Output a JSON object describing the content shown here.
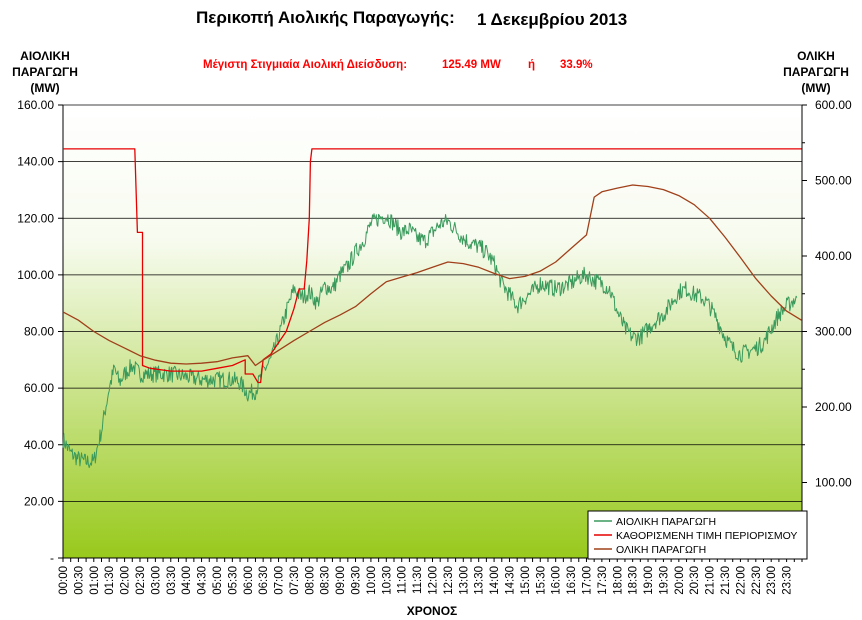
{
  "title_main": "Περικοπή Αιολικής Παραγωγής:",
  "title_date": "1 Δεκεμβρίου 2013",
  "subtitle": {
    "label": "Μέγιστη Στιγμιαία Αιολική Διείσδυση:",
    "value_mw": "125.49 MW",
    "or_word": "ή",
    "value_pct": "33.9%"
  },
  "left_axis_title": [
    "ΑΙΟΛΙΚΗ",
    "ΠΑΡΑΓΩΓΗ",
    "(MW)"
  ],
  "right_axis_title": [
    "ΟΛΙΚΗ",
    "ΠΑΡΑΓΩΓΗ",
    "(MW)"
  ],
  "x_axis_title": "ΧΡΟΝΟΣ",
  "colors": {
    "wind": "#3a9a5c",
    "limit": "#e60000",
    "total": "#a0401a",
    "gradient_top": "#ffffff",
    "gradient_bottom": "#98c91c"
  },
  "chart_data": {
    "type": "line",
    "grid": true,
    "legend_position": "bottom-right",
    "x_tick_labels": [
      "00:00",
      "00:30",
      "01:00",
      "01:30",
      "02:00",
      "02:30",
      "03:00",
      "03:30",
      "04:00",
      "04:30",
      "05:00",
      "05:30",
      "06:00",
      "06:30",
      "07:00",
      "07:30",
      "08:00",
      "08:30",
      "09:00",
      "09:30",
      "10:00",
      "10:30",
      "11:00",
      "11:30",
      "12:00",
      "12:30",
      "13:00",
      "13:30",
      "14:00",
      "14:30",
      "15:00",
      "15:30",
      "16:00",
      "16:30",
      "17:00",
      "17:30",
      "18:00",
      "18:30",
      "19:00",
      "19:30",
      "20:00",
      "20:30",
      "21:00",
      "21:30",
      "22:00",
      "22:30",
      "23:00",
      "23:30"
    ],
    "y_left": {
      "min": 0,
      "max": 160,
      "tick_labels": [
        "-",
        "20.00",
        "40.00",
        "60.00",
        "80.00",
        "100.00",
        "120.00",
        "140.00",
        "160.00"
      ]
    },
    "y_right": {
      "min": 0,
      "max": 600,
      "tick_labels": [
        "100.00",
        "200.00",
        "300.00",
        "400.00",
        "500.00",
        "600.00"
      ]
    },
    "series": [
      {
        "name": "ΑΙΟΛΙΚΗ ΠΑΡΑΓΩΓΗ",
        "axis": "left",
        "points": [
          [
            "00:00",
            42
          ],
          [
            "00:15",
            37
          ],
          [
            "00:30",
            35
          ],
          [
            "00:45",
            34
          ],
          [
            "01:00",
            34
          ],
          [
            "01:15",
            45
          ],
          [
            "01:30",
            60
          ],
          [
            "01:40",
            67
          ],
          [
            "01:50",
            62
          ],
          [
            "02:00",
            65
          ],
          [
            "02:15",
            68
          ],
          [
            "02:30",
            65
          ],
          [
            "03:00",
            65
          ],
          [
            "03:30",
            65
          ],
          [
            "04:00",
            64
          ],
          [
            "04:30",
            63
          ],
          [
            "05:00",
            63
          ],
          [
            "05:30",
            63
          ],
          [
            "05:45",
            62
          ],
          [
            "06:00",
            58
          ],
          [
            "06:15",
            59
          ],
          [
            "06:30",
            66
          ],
          [
            "06:45",
            70
          ],
          [
            "07:00",
            78
          ],
          [
            "07:15",
            87
          ],
          [
            "07:30",
            95
          ],
          [
            "07:45",
            92
          ],
          [
            "08:00",
            94
          ],
          [
            "08:15",
            90
          ],
          [
            "08:30",
            96
          ],
          [
            "08:45",
            95
          ],
          [
            "09:00",
            100
          ],
          [
            "09:15",
            103
          ],
          [
            "09:30",
            108
          ],
          [
            "09:45",
            112
          ],
          [
            "10:00",
            118
          ],
          [
            "10:15",
            120
          ],
          [
            "10:30",
            121
          ],
          [
            "10:45",
            118
          ],
          [
            "11:00",
            115
          ],
          [
            "11:15",
            116
          ],
          [
            "11:30",
            113
          ],
          [
            "11:45",
            112
          ],
          [
            "12:00",
            115
          ],
          [
            "12:15",
            118
          ],
          [
            "12:30",
            119
          ],
          [
            "12:45",
            116
          ],
          [
            "13:00",
            113
          ],
          [
            "13:15",
            111
          ],
          [
            "13:30",
            110
          ],
          [
            "13:45",
            108
          ],
          [
            "14:00",
            104
          ],
          [
            "14:15",
            97
          ],
          [
            "14:30",
            93
          ],
          [
            "14:45",
            89
          ],
          [
            "15:00",
            92
          ],
          [
            "15:15",
            94
          ],
          [
            "15:30",
            97
          ],
          [
            "15:45",
            96
          ],
          [
            "16:00",
            95
          ],
          [
            "16:15",
            96
          ],
          [
            "16:30",
            97
          ],
          [
            "16:45",
            99
          ],
          [
            "17:00",
            100
          ],
          [
            "17:15",
            98
          ],
          [
            "17:30",
            97
          ],
          [
            "17:45",
            95
          ],
          [
            "18:00",
            87
          ],
          [
            "18:15",
            81
          ],
          [
            "18:30",
            78
          ],
          [
            "18:45",
            78
          ],
          [
            "19:00",
            81
          ],
          [
            "19:15",
            84
          ],
          [
            "19:30",
            86
          ],
          [
            "19:45",
            90
          ],
          [
            "20:00",
            94
          ],
          [
            "20:15",
            95
          ],
          [
            "20:30",
            93
          ],
          [
            "20:45",
            92
          ],
          [
            "21:00",
            89
          ],
          [
            "21:15",
            84
          ],
          [
            "21:30",
            78
          ],
          [
            "21:45",
            74
          ],
          [
            "22:00",
            72
          ],
          [
            "22:15",
            73
          ],
          [
            "22:30",
            74
          ],
          [
            "22:45",
            76
          ],
          [
            "23:00",
            81
          ],
          [
            "23:15",
            86
          ],
          [
            "23:30",
            89
          ],
          [
            "23:50",
            92
          ]
        ]
      },
      {
        "name": "ΚΑΘΟΡΙΣΜΕΝΗ ΤΙΜΗ ΠΕΡΙΟΡΙΣΜΟΥ",
        "axis": "left",
        "points": [
          [
            "00:00",
            144.5
          ],
          [
            "02:20",
            144.5
          ],
          [
            "02:25",
            115
          ],
          [
            "02:35",
            115
          ],
          [
            "02:35",
            68
          ],
          [
            "02:50",
            67
          ],
          [
            "03:30",
            66
          ],
          [
            "04:30",
            66
          ],
          [
            "05:00",
            67
          ],
          [
            "05:30",
            68
          ],
          [
            "05:55",
            70
          ],
          [
            "05:55",
            65
          ],
          [
            "06:10",
            65
          ],
          [
            "06:20",
            62
          ],
          [
            "06:25",
            62
          ],
          [
            "06:30",
            70
          ],
          [
            "06:45",
            72
          ],
          [
            "07:00",
            76
          ],
          [
            "07:15",
            80
          ],
          [
            "07:30",
            88
          ],
          [
            "07:40",
            95
          ],
          [
            "07:50",
            95
          ],
          [
            "07:55",
            105
          ],
          [
            "08:00",
            120
          ],
          [
            "08:02",
            140
          ],
          [
            "08:05",
            144.5
          ],
          [
            "23:59",
            144.5
          ]
        ]
      },
      {
        "name": "ΟΛΙΚΗ ΠΑΡΑΓΩΓΗ",
        "axis": "right",
        "points": [
          [
            "00:00",
            326
          ],
          [
            "00:30",
            315
          ],
          [
            "01:00",
            300
          ],
          [
            "01:30",
            288
          ],
          [
            "02:00",
            278
          ],
          [
            "02:30",
            268
          ],
          [
            "03:00",
            262
          ],
          [
            "03:30",
            258
          ],
          [
            "04:00",
            257
          ],
          [
            "04:30",
            258
          ],
          [
            "05:00",
            260
          ],
          [
            "05:30",
            265
          ],
          [
            "06:00",
            268
          ],
          [
            "06:15",
            255
          ],
          [
            "06:30",
            262
          ],
          [
            "07:00",
            275
          ],
          [
            "07:30",
            288
          ],
          [
            "08:00",
            300
          ],
          [
            "08:30",
            312
          ],
          [
            "09:00",
            322
          ],
          [
            "09:30",
            333
          ],
          [
            "10:00",
            350
          ],
          [
            "10:30",
            366
          ],
          [
            "11:00",
            372
          ],
          [
            "11:30",
            378
          ],
          [
            "12:00",
            385
          ],
          [
            "12:30",
            392
          ],
          [
            "13:00",
            390
          ],
          [
            "13:30",
            385
          ],
          [
            "14:00",
            377
          ],
          [
            "14:30",
            370
          ],
          [
            "15:00",
            373
          ],
          [
            "15:30",
            380
          ],
          [
            "16:00",
            392
          ],
          [
            "16:30",
            410
          ],
          [
            "17:00",
            428
          ],
          [
            "17:15",
            478
          ],
          [
            "17:30",
            485
          ],
          [
            "18:00",
            490
          ],
          [
            "18:30",
            494
          ],
          [
            "19:00",
            492
          ],
          [
            "19:30",
            488
          ],
          [
            "20:00",
            480
          ],
          [
            "20:30",
            468
          ],
          [
            "21:00",
            450
          ],
          [
            "21:30",
            425
          ],
          [
            "22:00",
            398
          ],
          [
            "22:30",
            370
          ],
          [
            "23:00",
            347
          ],
          [
            "23:30",
            327
          ],
          [
            "23:59",
            315
          ]
        ]
      }
    ]
  }
}
